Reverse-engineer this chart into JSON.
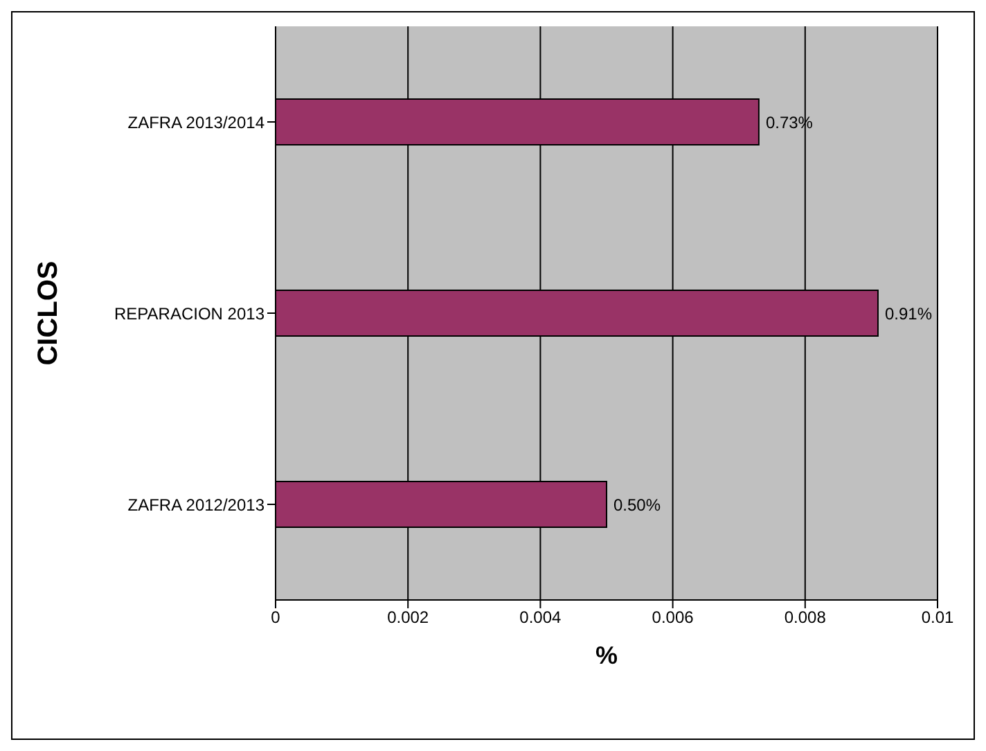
{
  "chart_data": {
    "type": "bar",
    "orientation": "horizontal",
    "xlabel": "%",
    "ylabel": "CICLOS",
    "categories": [
      "ZAFRA 2013/2014",
      "REPARACION 2013",
      "ZAFRA 2012/2013"
    ],
    "values": [
      0.0073,
      0.0091,
      0.005
    ],
    "value_labels": [
      "0.73%",
      "0.91%",
      "0.50%"
    ],
    "color": "#993366",
    "xlim": [
      0,
      0.01
    ],
    "xticks": [
      0,
      0.002,
      0.004,
      0.006,
      0.008,
      0.01
    ],
    "grid": "x"
  }
}
